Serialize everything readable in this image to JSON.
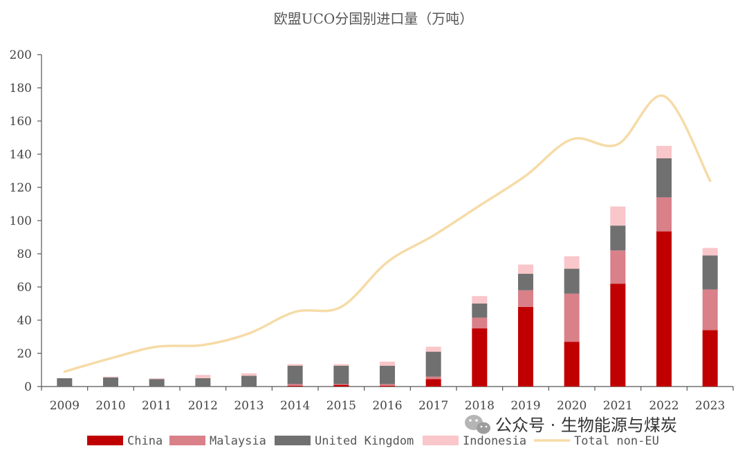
{
  "chart_data": {
    "type": "bar",
    "title": "欧盟UCO分国别进口量（万吨）",
    "categories": [
      "2009",
      "2010",
      "2011",
      "2012",
      "2013",
      "2014",
      "2015",
      "2016",
      "2017",
      "2018",
      "2019",
      "2020",
      "2021",
      "2022",
      "2023"
    ],
    "ylim": [
      0,
      200
    ],
    "yticks": [
      0,
      20,
      40,
      60,
      80,
      100,
      120,
      140,
      160,
      180,
      200
    ],
    "ytick_labels": [
      "0",
      "20",
      "40",
      "60",
      "80",
      "100",
      "120",
      "140",
      "160",
      "180",
      "200"
    ],
    "stacked": true,
    "series": [
      {
        "name": "China",
        "color": "#c00000",
        "values": [
          0,
          0,
          0,
          0,
          0,
          0.5,
          1,
          0.5,
          4.5,
          35,
          48,
          27,
          62,
          93.5,
          34
        ]
      },
      {
        "name": "Malaysia",
        "color": "#d98089",
        "values": [
          0,
          0,
          0,
          0,
          0,
          1,
          0.5,
          1,
          1.5,
          6.5,
          10,
          29,
          20,
          20.5,
          24.5
        ]
      },
      {
        "name": "United Kingdom",
        "color": "#707070",
        "values": [
          5,
          5.5,
          4.5,
          5,
          6.5,
          11,
          11,
          11,
          15,
          8.5,
          10,
          15,
          15,
          23.5,
          20.5
        ]
      },
      {
        "name": "Indonesia",
        "color": "#f9c6c9",
        "values": [
          0,
          0.5,
          0.5,
          2,
          1.5,
          1,
          1,
          2.5,
          3,
          4.5,
          5.5,
          7.5,
          11.5,
          7.5,
          4.5
        ]
      }
    ],
    "line_series": {
      "name": "Total non-EU",
      "color": "#f6dba7",
      "values": [
        9,
        17,
        24,
        25,
        32,
        45,
        48,
        75,
        91,
        109,
        127,
        149,
        146,
        175,
        124
      ]
    },
    "legend_position": "bottom"
  },
  "watermark": {
    "text": "公众号 · 生物能源与煤炭",
    "icon": "wechat-icon"
  }
}
